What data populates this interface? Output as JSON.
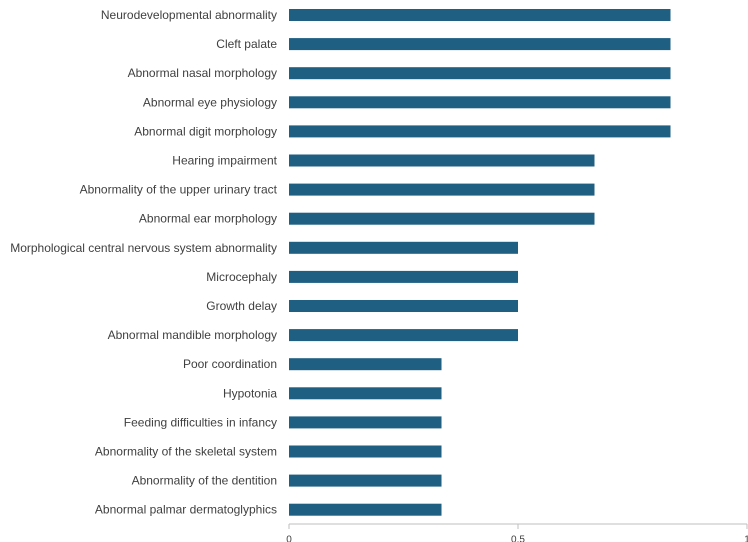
{
  "chart_data": {
    "type": "bar",
    "orientation": "horizontal",
    "title": "",
    "xlabel": "",
    "ylabel": "",
    "xlim": [
      0,
      1
    ],
    "xticks": [
      {
        "value": 0,
        "label": "0"
      },
      {
        "value": 0.5,
        "label": "0.5"
      },
      {
        "value": 1,
        "label": "1"
      }
    ],
    "grid": false,
    "bar_color": "#1f5f82",
    "axis_color": "#bfbfbf",
    "categories": [
      "Neurodevelopmental abnormality",
      "Cleft palate",
      "Abnormal nasal morphology",
      "Abnormal eye physiology",
      "Abnormal digit morphology",
      "Hearing impairment",
      "Abnormality of the upper urinary tract",
      "Abnormal ear morphology",
      "Morphological central nervous system abnormality",
      "Microcephaly",
      "Growth delay",
      "Abnormal mandible morphology",
      "Poor coordination",
      "Hypotonia",
      "Feeding difficulties in infancy",
      "Abnormality of the skeletal system",
      "Abnormality of the dentition",
      "Abnormal palmar dermatoglyphics"
    ],
    "values": [
      0.833,
      0.833,
      0.833,
      0.833,
      0.833,
      0.667,
      0.667,
      0.667,
      0.5,
      0.5,
      0.5,
      0.5,
      0.333,
      0.333,
      0.333,
      0.333,
      0.333,
      0.333
    ]
  }
}
